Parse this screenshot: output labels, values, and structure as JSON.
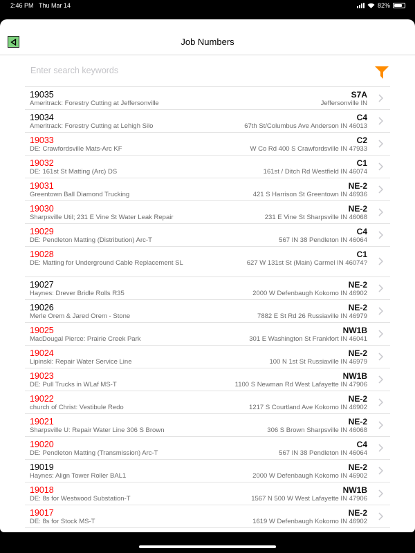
{
  "status_bar": {
    "time": "2:46 PM",
    "date": "Thu Mar 14",
    "battery": "82%",
    "battery_level": 0.82
  },
  "header": {
    "title": "Job Numbers",
    "back_icon": "back-triangle-icon"
  },
  "search": {
    "placeholder": "Enter search keywords",
    "value": "",
    "filter_icon": "funnel-icon",
    "filter_color": "#ff8c00"
  },
  "colors": {
    "active": "#ff0000",
    "inactive": "#000000"
  },
  "jobs": [
    {
      "number": "19035",
      "description": "Ameritrack: Forestry Cutting at Jeffersonville",
      "code": "S7A",
      "address": "Jeffersonville IN",
      "red": false
    },
    {
      "number": "19034",
      "description": "Ameritrack: Forestry Cutting at Lehigh Silo",
      "code": "C4",
      "address": "67th St/Columbus Ave Anderson IN 46013",
      "red": false
    },
    {
      "number": "19033",
      "description": "DE: Crawfordsville Mats-Arc KF",
      "code": "C2",
      "address": "W Co Rd 400 S Crawfordsville IN 47933",
      "red": true
    },
    {
      "number": "19032",
      "description": "DE: 161st St Matting (Arc) DS",
      "code": "C1",
      "address": "161st / Ditch Rd Westfield IN 46074",
      "red": true
    },
    {
      "number": "19031",
      "description": "Greentown Ball Diamond Trucking",
      "code": "NE-2",
      "address": "421 S Harrison St Greentown IN 46936",
      "red": true
    },
    {
      "number": "19030",
      "description": "Sharpsville Util; 231 E Vine St Water Leak Repair",
      "code": "NE-2",
      "address": "231 E Vine St Sharpsville IN 46068",
      "red": true
    },
    {
      "number": "19029",
      "description": "DE: Pendleton Matting (Distribution) Arc-T",
      "code": "C4",
      "address": "567 IN 38 Pendleton IN 46064",
      "red": true
    },
    {
      "number": "19028",
      "description": "DE: Matting for Underground Cable Replacement SL",
      "code": "C1",
      "address": "627 W 131st St (Main) Carmel IN 46074?",
      "red": true,
      "tall": true
    },
    {
      "number": "19027",
      "description": "Haynes: Drever Bridle Rolls R35",
      "code": "NE-2",
      "address": "2000 W Defenbaugh Kokomo IN 46902",
      "red": false
    },
    {
      "number": "19026",
      "description": "Merle Orem & Jared Orem - Stone",
      "code": "NE-2",
      "address": "7882 E St Rd 26 Russiaville IN 46979",
      "red": false
    },
    {
      "number": "19025",
      "description": "MacDougal Pierce: Prairie Creek Park",
      "code": "NW1B",
      "address": "301 E Washington St Frankfort IN 46041",
      "red": true
    },
    {
      "number": "19024",
      "description": "Lipinski: Repair Water Service Line",
      "code": "NE-2",
      "address": "100 N 1st St Russiaville IN 46979",
      "red": true
    },
    {
      "number": "19023",
      "description": "DE: Pull Trucks in WLaf MS-T",
      "code": "NW1B",
      "address": "1100 S Newman Rd West Lafayette IN 47906",
      "red": true
    },
    {
      "number": "19022",
      "description": "church of Christ: Vestibule Redo",
      "code": "NE-2",
      "address": "1217 S Courtland Ave Kokomo IN 46902",
      "red": true
    },
    {
      "number": "19021",
      "description": "Sharpsville U: Repair Water Line 306 S Brown",
      "code": "NE-2",
      "address": "306 S Brown Sharpsville IN 46068",
      "red": true
    },
    {
      "number": "19020",
      "description": "DE: Pendleton Matting (Transmission) Arc-T",
      "code": "C4",
      "address": "567 IN 38 Pendleton IN 46064",
      "red": true
    },
    {
      "number": "19019",
      "description": "Haynes: Align Tower Roller BAL1",
      "code": "NE-2",
      "address": "2000 W Defenbaugh Kokomo IN 46902",
      "red": false
    },
    {
      "number": "19018",
      "description": "DE: 8s for Westwood Substation-T",
      "code": "NW1B",
      "address": "1567 N 500 W West Lafayette IN 47906",
      "red": true
    },
    {
      "number": "19017",
      "description": "DE: 8s for Stock MS-T",
      "code": "NE-2",
      "address": "1619 W Defenbaugh Kokomo IN 46902",
      "red": true
    }
  ]
}
